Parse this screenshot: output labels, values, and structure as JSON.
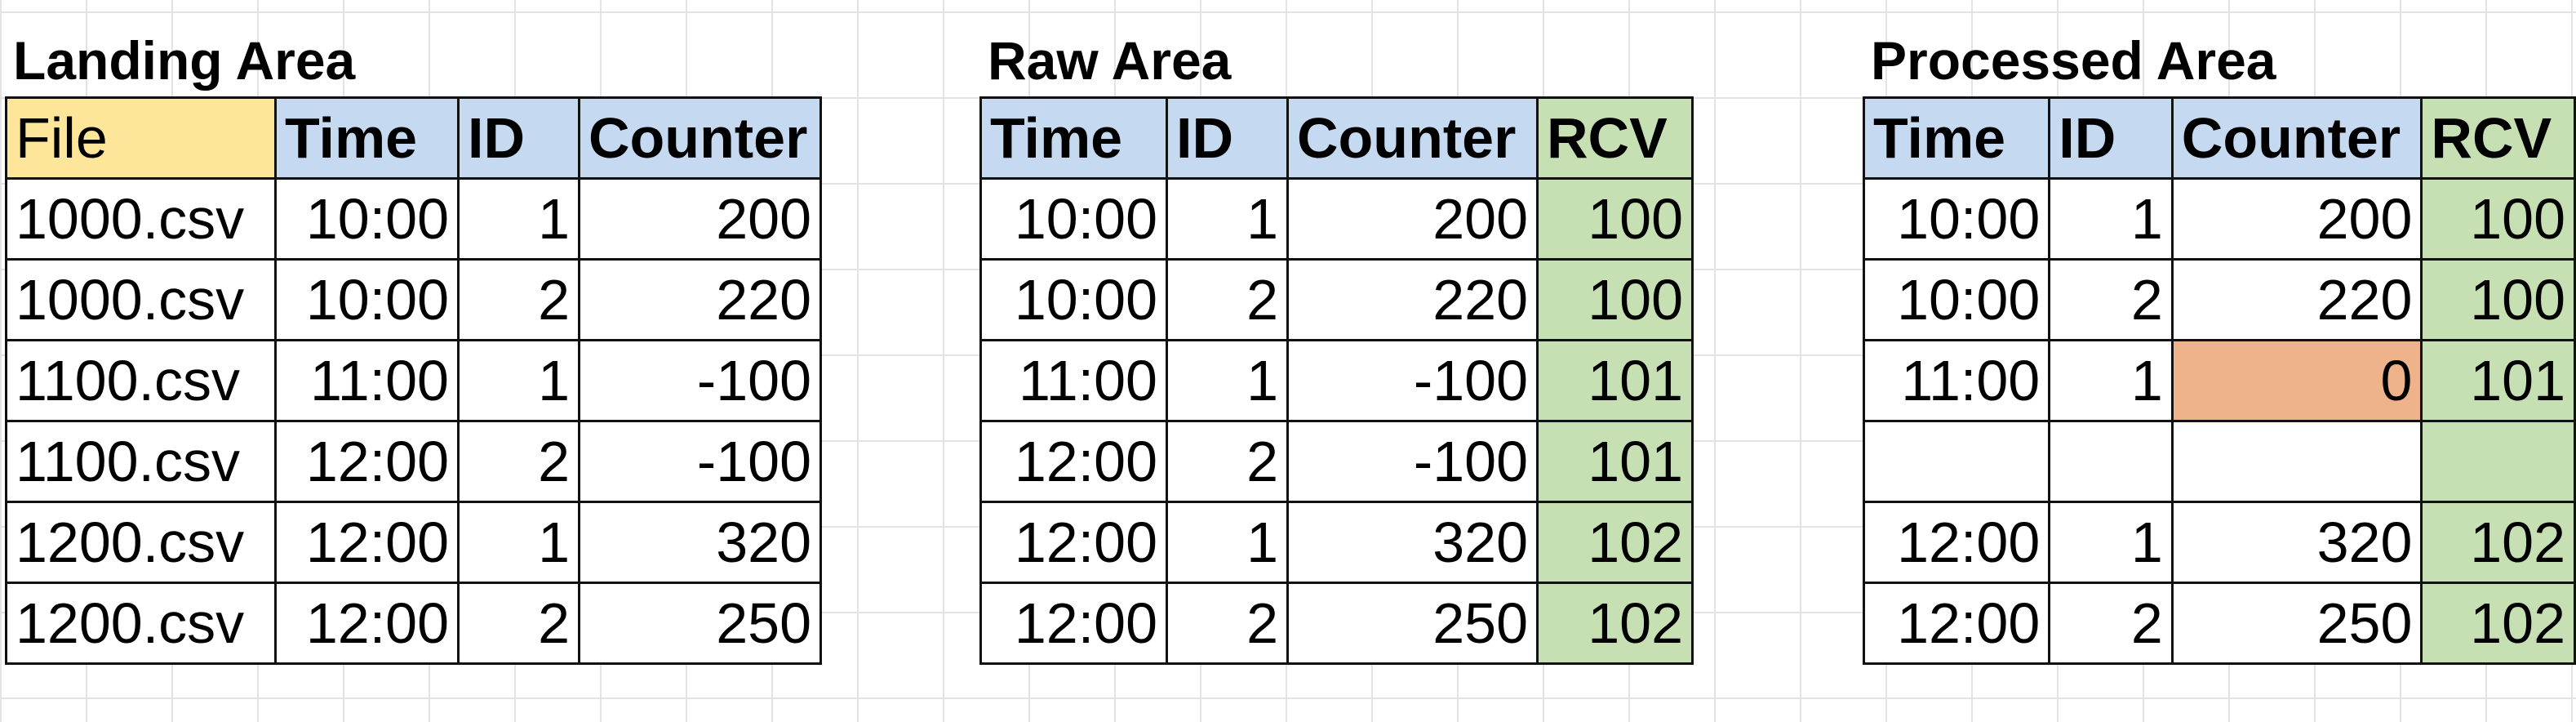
{
  "landing": {
    "title": "Landing Area",
    "headers": [
      "File",
      "Time",
      "ID",
      "Counter"
    ],
    "rows": [
      [
        "1000.csv",
        "10:00",
        "1",
        "200"
      ],
      [
        "1000.csv",
        "10:00",
        "2",
        "220"
      ],
      [
        "1100.csv",
        "11:00",
        "1",
        "-100"
      ],
      [
        "1100.csv",
        "12:00",
        "2",
        "-100"
      ],
      [
        "1200.csv",
        "12:00",
        "1",
        "320"
      ],
      [
        "1200.csv",
        "12:00",
        "2",
        "250"
      ]
    ]
  },
  "raw": {
    "title": "Raw Area",
    "headers": [
      "Time",
      "ID",
      "Counter",
      "RCV"
    ],
    "rows": [
      [
        "10:00",
        "1",
        "200",
        "100"
      ],
      [
        "10:00",
        "2",
        "220",
        "100"
      ],
      [
        "11:00",
        "1",
        "-100",
        "101"
      ],
      [
        "12:00",
        "2",
        "-100",
        "101"
      ],
      [
        "12:00",
        "1",
        "320",
        "102"
      ],
      [
        "12:00",
        "2",
        "250",
        "102"
      ]
    ]
  },
  "processed": {
    "title": "Processed Area",
    "headers": [
      "Time",
      "ID",
      "Counter",
      "RCV"
    ],
    "rows": [
      [
        "10:00",
        "1",
        "200",
        "100"
      ],
      [
        "10:00",
        "2",
        "220",
        "100"
      ],
      [
        "11:00",
        "1",
        "0",
        "101"
      ],
      [
        "",
        "",
        "",
        ""
      ],
      [
        "12:00",
        "1",
        "320",
        "102"
      ],
      [
        "12:00",
        "2",
        "250",
        "102"
      ]
    ],
    "highlight_color": "#eeb38a",
    "highlighted_cell": "counter of the 11:00 row"
  },
  "colors": {
    "header_blue": "#c5d9f1",
    "file_header_yellow": "#fde59a",
    "rcv_green": "#c6e0b4"
  }
}
